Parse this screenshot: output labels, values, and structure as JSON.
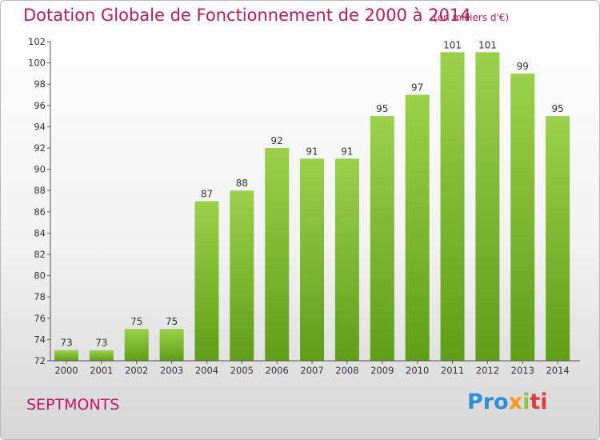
{
  "header": {
    "title": "Dotation Globale de Fonctionnement de 2000 à 2014",
    "subtitle": "(en milliers d'€)"
  },
  "footer": {
    "commune": "SEPTMONTS",
    "logo_parts": [
      "Pro",
      "x",
      "i",
      "ti"
    ]
  },
  "colors": {
    "title": "#c2185b",
    "bar_light": "#9bd14a",
    "bar_dark": "#5f9e17",
    "axis": "#555555"
  },
  "chart_data": {
    "type": "bar",
    "title": "Dotation Globale de Fonctionnement de 2000 à 2014",
    "subtitle": "(en milliers d'€)",
    "xlabel": "",
    "ylabel": "",
    "categories": [
      "2000",
      "2001",
      "2002",
      "2003",
      "2004",
      "2005",
      "2006",
      "2007",
      "2008",
      "2009",
      "2010",
      "2011",
      "2012",
      "2013",
      "2014"
    ],
    "values": [
      73,
      73,
      75,
      75,
      87,
      88,
      92,
      91,
      91,
      95,
      97,
      101,
      101,
      99,
      95
    ],
    "data_labels": [
      "73",
      "73",
      "75",
      "75",
      "87",
      "88",
      "92",
      "91",
      "91",
      "95",
      "97",
      "101",
      "101",
      "99",
      "95"
    ],
    "ylim": [
      72,
      102
    ],
    "yticks": [
      72,
      74,
      76,
      78,
      80,
      82,
      84,
      86,
      88,
      90,
      92,
      94,
      96,
      98,
      100,
      102
    ],
    "grid": false,
    "legend": "none"
  }
}
